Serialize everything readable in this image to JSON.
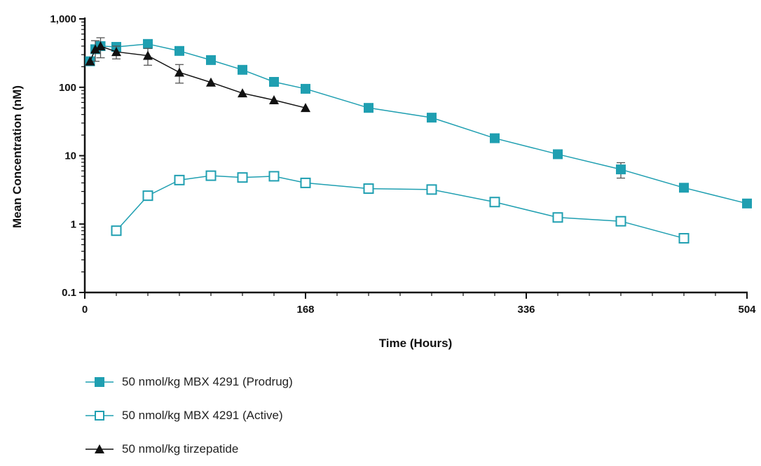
{
  "chart_data": {
    "type": "line",
    "xlabel": "Time (Hours)",
    "ylabel": "Mean Concentration (nM)",
    "yscale": "log",
    "xlim": [
      0,
      504
    ],
    "ylim": [
      0.1,
      1000
    ],
    "xticks": [
      0,
      168,
      336,
      504
    ],
    "xtick_labels": [
      "0",
      "168",
      "336",
      "504"
    ],
    "yticks": [
      0.1,
      1,
      10,
      100,
      1000
    ],
    "ytick_labels": [
      "0.1",
      "1",
      "10",
      "100",
      "1,000"
    ],
    "legend_position": "bottom",
    "series": [
      {
        "name": "50 nmol/kg MBX 4291 (Prodrug)",
        "color": "#1f9fb1",
        "marker": "square-filled",
        "x": [
          4,
          8,
          12,
          24,
          48,
          72,
          96,
          120,
          144,
          168,
          216,
          264,
          312,
          360,
          408,
          456,
          504
        ],
        "y": [
          240,
          360,
          400,
          390,
          430,
          340,
          250,
          180,
          120,
          95,
          50,
          36,
          18,
          10.5,
          6.3,
          3.4,
          2
        ],
        "error": [
          null,
          null,
          null,
          null,
          null,
          null,
          null,
          null,
          null,
          null,
          null,
          null,
          null,
          null,
          1.6,
          null,
          null
        ]
      },
      {
        "name": "50 nmol/kg MBX 4291 (Active)",
        "color": "#1f9fb1",
        "marker": "square-open",
        "x": [
          24,
          48,
          72,
          96,
          120,
          144,
          168,
          216,
          264,
          312,
          360,
          408,
          456
        ],
        "y": [
          0.8,
          2.6,
          4.4,
          5.1,
          4.8,
          5.0,
          4.0,
          3.3,
          3.2,
          2.1,
          1.25,
          1.1,
          0.62
        ],
        "error": [
          null,
          null,
          null,
          null,
          null,
          null,
          null,
          null,
          null,
          null,
          null,
          null,
          null
        ]
      },
      {
        "name": "50 nmol/kg tirzepatide",
        "color": "#111111",
        "marker": "triangle-filled",
        "x": [
          4,
          8,
          12,
          24,
          48,
          72,
          96,
          120,
          144,
          168
        ],
        "y": [
          240,
          360,
          400,
          330,
          290,
          165,
          118,
          82,
          65,
          50
        ],
        "error": [
          null,
          120,
          130,
          70,
          80,
          50,
          null,
          null,
          null,
          null
        ]
      }
    ]
  }
}
